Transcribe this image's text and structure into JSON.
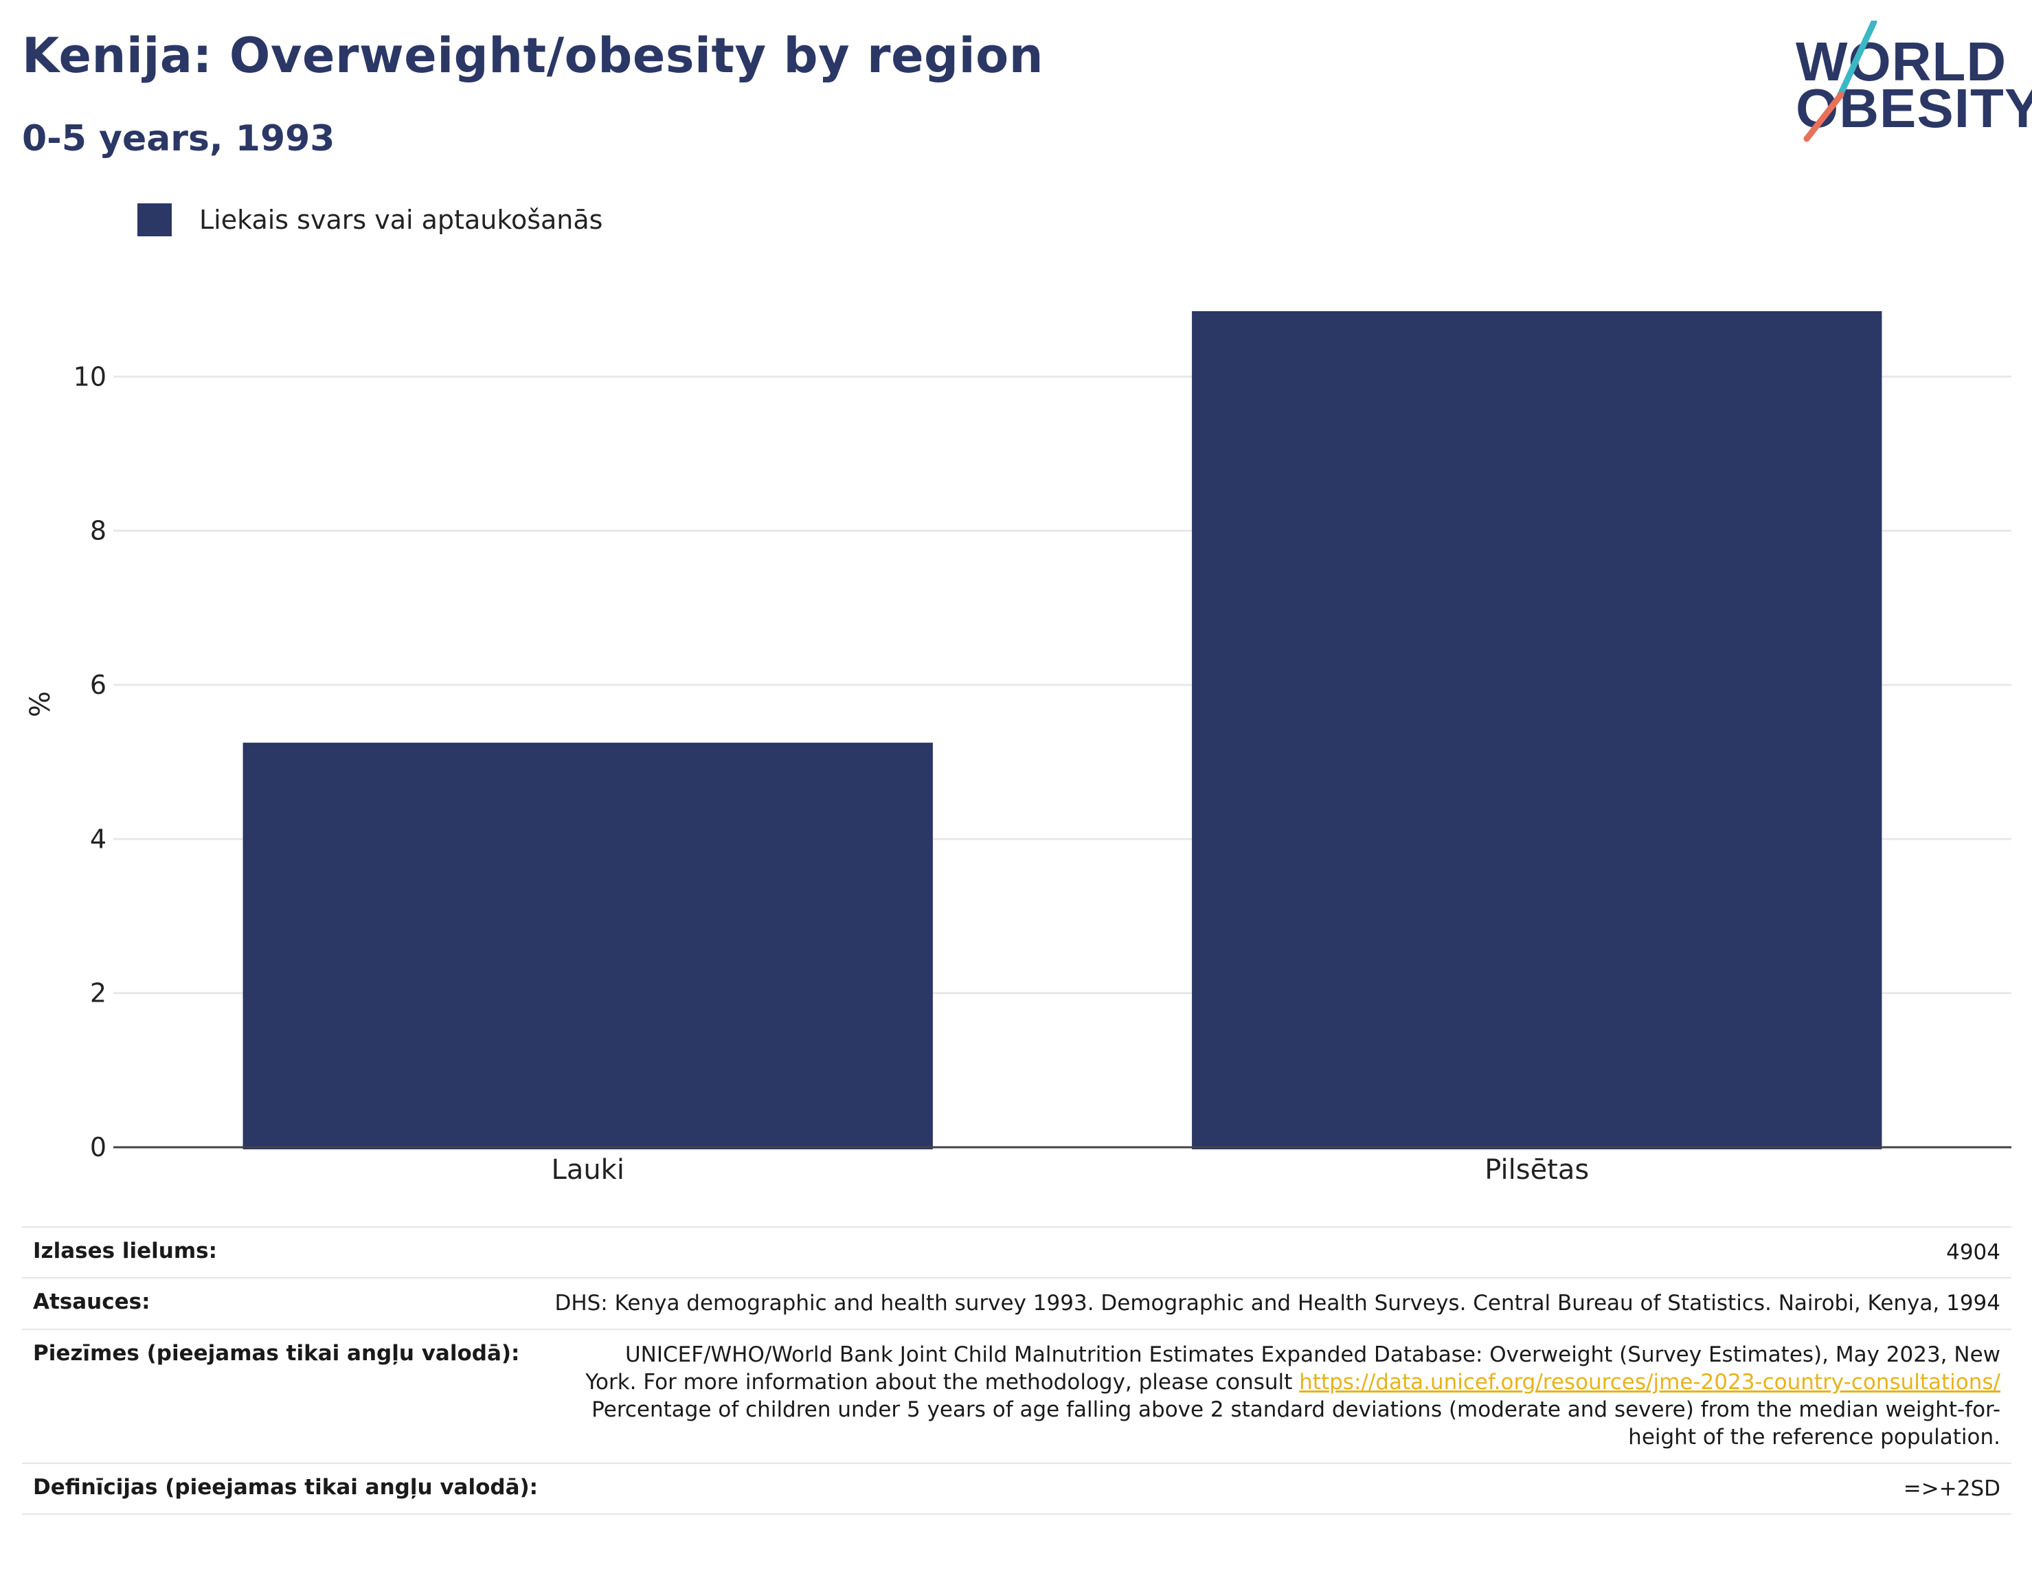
{
  "title": "Kenija: Overweight/obesity by region",
  "subtitle": "0-5 years, 1993",
  "logo": {
    "line1": "WORLD",
    "line2": "OBESITY",
    "colors": {
      "text": "#2b3765",
      "slash_top": "#3bb8c3",
      "slash_bottom": "#e8715a"
    }
  },
  "legend": {
    "label": "Liekais svars vai aptaukošanās",
    "color": "#2b3765"
  },
  "chart_data": {
    "type": "bar",
    "categories": [
      "Lauki",
      "Pilsētas"
    ],
    "series": [
      {
        "name": "Liekais svars vai aptaukošanās",
        "values": [
          5.25,
          10.85
        ]
      }
    ],
    "ylabel": "%",
    "xlabel": "",
    "ylim": [
      0,
      11.5
    ],
    "yticks": [
      0,
      2,
      4,
      6,
      8,
      10
    ],
    "grid": true,
    "legend_position": "top-left",
    "bar_color": "#2b3765"
  },
  "info": {
    "sample_size": {
      "label": "Izlases lielums:",
      "value": "4904"
    },
    "sources": {
      "label": "Atsauces:",
      "value": "DHS: Kenya demographic and health survey 1993. Demographic and Health Surveys. Central Bureau of Statistics. Nairobi, Kenya, 1994"
    },
    "notes": {
      "label": "Piezīmes (pieejamas tikai angļu valodā):",
      "line1": "UNICEF/WHO/World Bank Joint Child Malnutrition Estimates Expanded Database: Overweight (Survey Estimates), May 2023, New",
      "line2_prefix": "York. For more information about the methodology, please consult ",
      "link": "https://data.unicef.org/resources/jme-2023-country-consultations/",
      "line3": "Percentage of children under 5 years of age falling above 2 standard deviations (moderate and severe) from the median weight-for-",
      "line4": "height of the reference population."
    },
    "definitions": {
      "label": "Definīcijas (pieejamas tikai angļu valodā):",
      "value": "=>+2SD"
    }
  }
}
